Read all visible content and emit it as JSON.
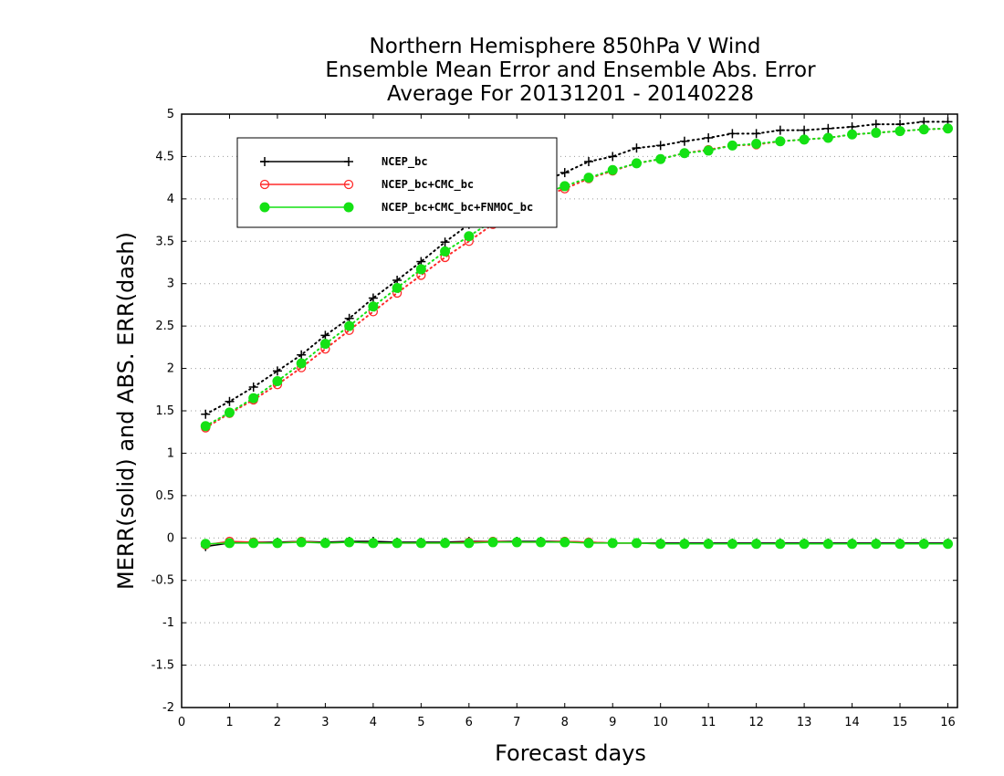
{
  "chart_data": {
    "type": "line",
    "title_lines": [
      "Northern Hemisphere 850hPa V Wind",
      "Ensemble Mean Error and Ensemble Abs. Error",
      "Average For 20131201 - 20140228"
    ],
    "xlabel": "Forecast days",
    "ylabel": "MERR(solid) and ABS. ERR(dash)",
    "xlim": [
      0,
      16.2
    ],
    "ylim": [
      -2,
      5
    ],
    "x_ticks": [
      "0",
      "1",
      "2",
      "3",
      "4",
      "5",
      "6",
      "7",
      "8",
      "9",
      "10",
      "11",
      "12",
      "13",
      "14",
      "15",
      "16"
    ],
    "y_ticks": [
      "-2",
      "-1.5",
      "-1",
      "-0.5",
      "0",
      "0.5",
      "1",
      "1.5",
      "2",
      "2.5",
      "3",
      "3.5",
      "4",
      "4.5",
      "5"
    ],
    "grid": "dotted-horizontal",
    "legend_position": "top-left",
    "x": [
      0.5,
      1,
      1.5,
      2,
      2.5,
      3,
      3.5,
      4,
      4.5,
      5,
      5.5,
      6,
      6.5,
      7,
      7.5,
      8,
      8.5,
      9,
      9.5,
      10,
      10.5,
      11,
      11.5,
      12,
      12.5,
      13,
      13.5,
      14,
      14.5,
      15,
      15.5,
      16
    ],
    "series": [
      {
        "name": "NCEP_bc",
        "color": "#000000",
        "marker": "plus",
        "abs_err": [
          1.46,
          1.61,
          1.78,
          1.97,
          2.16,
          2.39,
          2.59,
          2.83,
          3.04,
          3.26,
          3.49,
          3.7,
          3.87,
          4.02,
          4.2,
          4.31,
          4.44,
          4.5,
          4.6,
          4.63,
          4.68,
          4.72,
          4.77,
          4.77,
          4.81,
          4.81,
          4.83,
          4.85,
          4.88,
          4.88,
          4.91,
          4.91
        ],
        "merr": [
          -0.1,
          -0.06,
          -0.05,
          -0.05,
          -0.04,
          -0.05,
          -0.04,
          -0.04,
          -0.05,
          -0.05,
          -0.05,
          -0.04,
          -0.04,
          -0.04,
          -0.04,
          -0.04,
          -0.05,
          -0.06,
          -0.06,
          -0.06,
          -0.06,
          -0.06,
          -0.06,
          -0.06,
          -0.06,
          -0.06,
          -0.06,
          -0.06,
          -0.06,
          -0.06,
          -0.06,
          -0.06
        ]
      },
      {
        "name": "NCEP_bc+CMC_bc",
        "color": "#ff2a2a",
        "marker": "open-circle",
        "abs_err": [
          1.3,
          1.47,
          1.63,
          1.81,
          2.01,
          2.23,
          2.45,
          2.67,
          2.89,
          3.1,
          3.31,
          3.5,
          3.7,
          3.87,
          4.02,
          4.12,
          4.24,
          4.33,
          4.42,
          4.47,
          4.54,
          4.58,
          4.63,
          4.64,
          4.68,
          4.7,
          4.72,
          4.76,
          4.78,
          4.8,
          4.82,
          4.83
        ],
        "merr": [
          -0.08,
          -0.04,
          -0.05,
          -0.06,
          -0.04,
          -0.06,
          -0.05,
          -0.06,
          -0.06,
          -0.06,
          -0.06,
          -0.05,
          -0.04,
          -0.05,
          -0.05,
          -0.04,
          -0.05,
          -0.06,
          -0.06,
          -0.07,
          -0.07,
          -0.07,
          -0.07,
          -0.07,
          -0.07,
          -0.07,
          -0.07,
          -0.07,
          -0.07,
          -0.07,
          -0.07,
          -0.07
        ]
      },
      {
        "name": "NCEP_bc+CMC_bc+FNMOC_bc",
        "color": "#14e114",
        "marker": "filled-circle",
        "abs_err": [
          1.32,
          1.48,
          1.65,
          1.85,
          2.06,
          2.29,
          2.5,
          2.73,
          2.95,
          3.17,
          3.38,
          3.56,
          3.74,
          3.91,
          4.05,
          4.15,
          4.25,
          4.34,
          4.42,
          4.47,
          4.54,
          4.57,
          4.63,
          4.65,
          4.68,
          4.7,
          4.72,
          4.76,
          4.78,
          4.8,
          4.82,
          4.83
        ],
        "merr": [
          -0.07,
          -0.06,
          -0.06,
          -0.06,
          -0.05,
          -0.06,
          -0.05,
          -0.06,
          -0.06,
          -0.06,
          -0.06,
          -0.06,
          -0.05,
          -0.05,
          -0.05,
          -0.05,
          -0.06,
          -0.06,
          -0.06,
          -0.07,
          -0.07,
          -0.07,
          -0.07,
          -0.07,
          -0.07,
          -0.07,
          -0.07,
          -0.07,
          -0.07,
          -0.07,
          -0.07,
          -0.07
        ]
      }
    ]
  }
}
